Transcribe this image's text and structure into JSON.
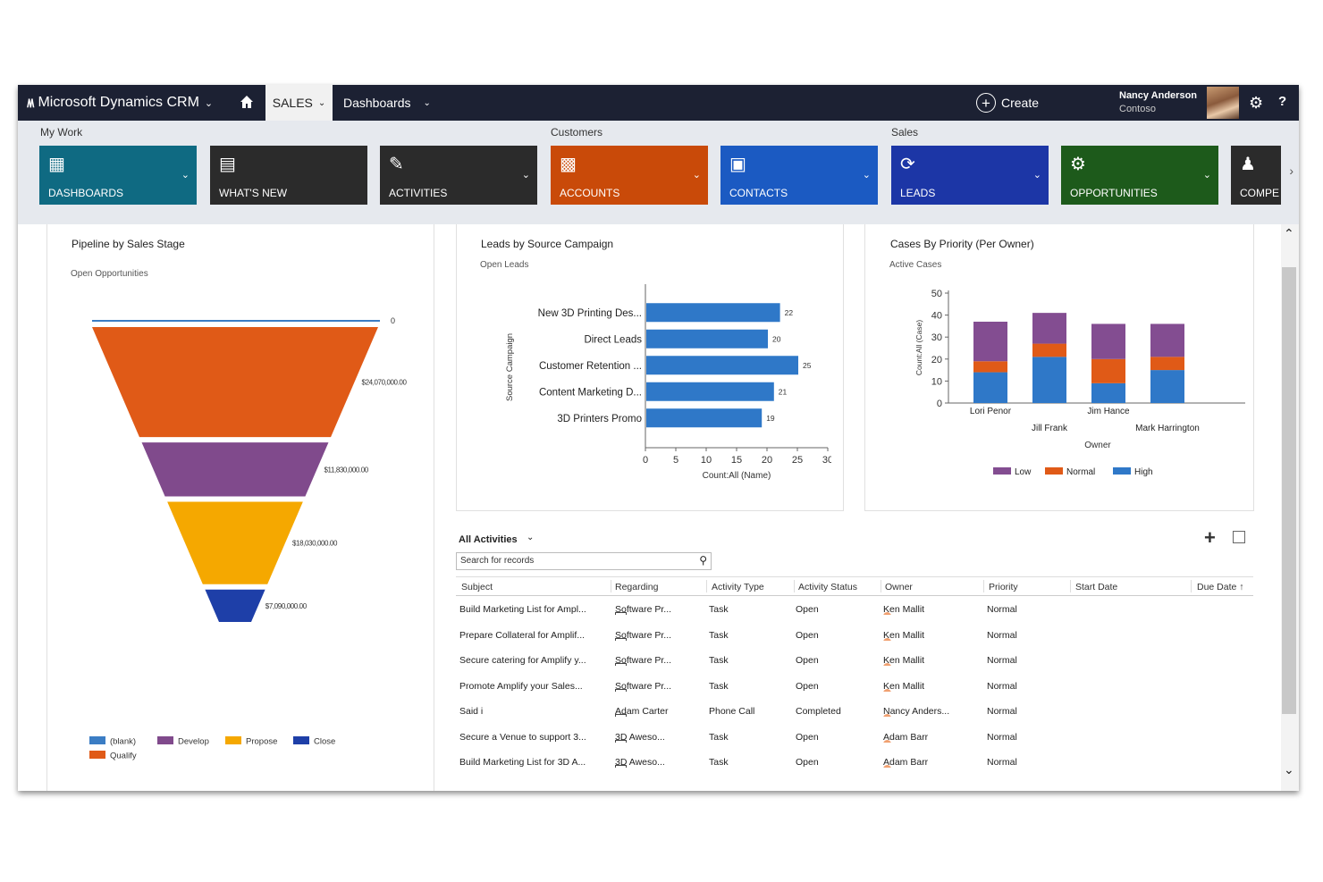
{
  "topbar": {
    "app_title": "Microsoft Dynamics CRM",
    "area": "SALES",
    "nav_item": "Dashboards",
    "create_label": "Create",
    "user_name": "Nancy Anderson",
    "user_org": "Contoso"
  },
  "ribbon": {
    "groups": [
      "My Work",
      "Customers",
      "Sales"
    ],
    "tiles": [
      {
        "label": "DASHBOARDS",
        "color": "#0f6a82",
        "icon": "dashboard-icon"
      },
      {
        "label": "WHAT'S NEW",
        "color": "#2b2b2b",
        "icon": "whats-new-icon"
      },
      {
        "label": "ACTIVITIES",
        "color": "#2b2b2b",
        "icon": "activities-icon"
      },
      {
        "label": "ACCOUNTS",
        "color": "#c94a09",
        "icon": "accounts-icon"
      },
      {
        "label": "CONTACTS",
        "color": "#1b5ac2",
        "icon": "contacts-icon"
      },
      {
        "label": "LEADS",
        "color": "#1c36a6",
        "icon": "leads-icon"
      },
      {
        "label": "OPPORTUNITIES",
        "color": "#1d5a1b",
        "icon": "opportunities-icon"
      },
      {
        "label": "COMPE",
        "color": "#2b2b2b",
        "icon": "competitors-icon"
      }
    ]
  },
  "pipeline": {
    "title": "Pipeline by Sales Stage",
    "subtitle": "Open Opportunities"
  },
  "leads": {
    "title": "Leads by Source Campaign",
    "subtitle": "Open Leads"
  },
  "cases": {
    "title": "Cases By Priority (Per Owner)",
    "subtitle": "Active Cases"
  },
  "chart_data": [
    {
      "type": "funnel",
      "title": "Pipeline by Sales Stage",
      "categories": [
        "(blank)",
        "Qualify",
        "Develop",
        "Propose",
        "Close"
      ],
      "values": [
        0,
        24070000,
        11830000,
        18030000,
        7090000
      ],
      "value_labels": [
        "0",
        "$24,070,000.00",
        "$11,830,000.00",
        "$18,030,000.00",
        "$7,090,000.00"
      ],
      "colors": [
        "#3b7dc4",
        "#e05a17",
        "#804a8c",
        "#f5a800",
        "#1e3fa8"
      ],
      "legend": [
        "(blank)",
        "Develop",
        "Propose",
        "Close",
        "Qualify"
      ]
    },
    {
      "type": "bar",
      "orientation": "horizontal",
      "title": "Leads by Source Campaign",
      "categories": [
        "New 3D Printing Des...",
        "Direct Leads",
        "Customer Retention ...",
        "Content Marketing D...",
        "3D Printers Promo"
      ],
      "values": [
        22,
        20,
        25,
        21,
        19
      ],
      "xlabel": "Count:All (Name)",
      "ylabel": "Source Campaign",
      "xlim": [
        0,
        30
      ],
      "xticks": [
        "0",
        "5",
        "10",
        "15",
        "20",
        "25",
        "30"
      ],
      "color": "#2f78c8"
    },
    {
      "type": "bar",
      "stacked": true,
      "title": "Cases By Priority (Per Owner)",
      "categories": [
        "Lori Penor",
        "Jill Frank",
        "Jim Hance",
        "Mark Harrington"
      ],
      "series": [
        {
          "name": "High",
          "values": [
            14,
            21,
            9,
            15
          ],
          "color": "#2f78c8"
        },
        {
          "name": "Normal",
          "values": [
            5,
            6,
            11,
            6
          ],
          "color": "#e05a17"
        },
        {
          "name": "Low",
          "values": [
            18,
            14,
            16,
            15
          ],
          "color": "#834d91"
        }
      ],
      "legend": [
        "Low",
        "Normal",
        "High"
      ],
      "xlabel": "Owner",
      "ylabel": "Count:All (Case)",
      "ylim": [
        0,
        50
      ],
      "yticks": [
        "0",
        "10",
        "20",
        "30",
        "40",
        "50"
      ]
    }
  ],
  "activities": {
    "title": "All Activities",
    "search_placeholder": "Search for records",
    "columns": [
      "Subject",
      "Regarding",
      "Activity Type",
      "Activity Status",
      "Owner",
      "Priority",
      "Start Date",
      "Due Date"
    ],
    "rows": [
      {
        "subject": "Build Marketing List for Ampl...",
        "regarding": "Software Pr...",
        "type": "Task",
        "status": "Open",
        "owner": "Ken Mallit",
        "priority": "Normal"
      },
      {
        "subject": "Prepare Collateral for Amplif...",
        "regarding": "Software Pr...",
        "type": "Task",
        "status": "Open",
        "owner": "Ken Mallit",
        "priority": "Normal"
      },
      {
        "subject": "Secure catering for Amplify y...",
        "regarding": "Software Pr...",
        "type": "Task",
        "status": "Open",
        "owner": "Ken Mallit",
        "priority": "Normal"
      },
      {
        "subject": "Promote Amplify your Sales...",
        "regarding": "Software Pr...",
        "type": "Task",
        "status": "Open",
        "owner": "Ken Mallit",
        "priority": "Normal"
      },
      {
        "subject": "Said i",
        "regarding": "Adam Carter",
        "type": "Phone Call",
        "status": "Completed",
        "owner": "Nancy Anders...",
        "priority": "Normal"
      },
      {
        "subject": "Secure a Venue to support 3...",
        "regarding": "3D Aweso...",
        "type": "Task",
        "status": "Open",
        "owner": "Adam Barr",
        "priority": "Normal"
      },
      {
        "subject": "Build Marketing List for 3D A...",
        "regarding": "3D Aweso...",
        "type": "Task",
        "status": "Open",
        "owner": "Adam Barr",
        "priority": "Normal"
      }
    ]
  }
}
